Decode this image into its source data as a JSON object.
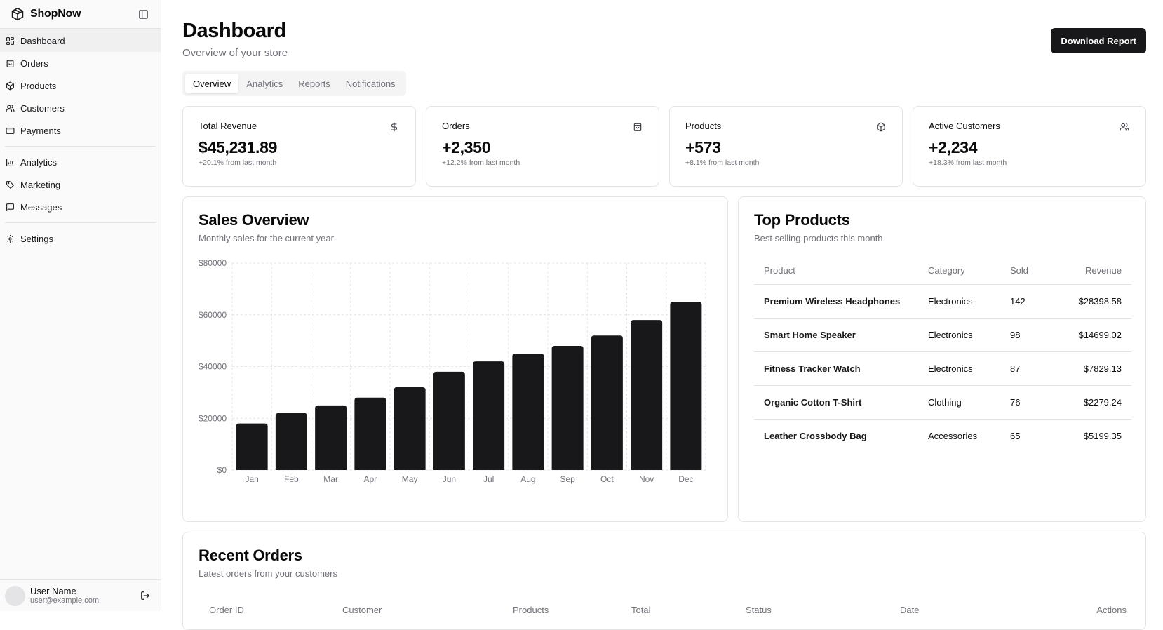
{
  "brand": {
    "name": "ShopNow"
  },
  "sidebar": {
    "primary": [
      {
        "label": "Dashboard",
        "icon": "layout-grid-icon",
        "active": true
      },
      {
        "label": "Orders",
        "icon": "shopping-bag-icon"
      },
      {
        "label": "Products",
        "icon": "package-icon"
      },
      {
        "label": "Customers",
        "icon": "users-icon"
      },
      {
        "label": "Payments",
        "icon": "credit-card-icon"
      }
    ],
    "secondary": [
      {
        "label": "Analytics",
        "icon": "bar-chart-icon"
      },
      {
        "label": "Marketing",
        "icon": "tag-icon"
      },
      {
        "label": "Messages",
        "icon": "message-square-icon"
      }
    ],
    "tertiary": [
      {
        "label": "Settings",
        "icon": "gear-icon"
      }
    ]
  },
  "user": {
    "name": "User Name",
    "email": "user@example.com"
  },
  "header": {
    "title": "Dashboard",
    "subtitle": "Overview of your store",
    "download_label": "Download Report"
  },
  "tabs": [
    {
      "label": "Overview",
      "active": true
    },
    {
      "label": "Analytics"
    },
    {
      "label": "Reports"
    },
    {
      "label": "Notifications"
    }
  ],
  "stats": [
    {
      "title": "Total Revenue",
      "value": "$45,231.89",
      "change": "+20.1% from last month",
      "icon": "dollar-icon"
    },
    {
      "title": "Orders",
      "value": "+2,350",
      "change": "+12.2% from last month",
      "icon": "shopping-bag-icon"
    },
    {
      "title": "Products",
      "value": "+573",
      "change": "+8.1% from last month",
      "icon": "package-icon"
    },
    {
      "title": "Active Customers",
      "value": "+2,234",
      "change": "+18.3% from last month",
      "icon": "users-icon"
    }
  ],
  "sales": {
    "title": "Sales Overview",
    "subtitle": "Monthly sales for the current year"
  },
  "chart_data": {
    "type": "bar",
    "categories": [
      "Jan",
      "Feb",
      "Mar",
      "Apr",
      "May",
      "Jun",
      "Jul",
      "Aug",
      "Sep",
      "Oct",
      "Nov",
      "Dec"
    ],
    "values": [
      18000,
      22000,
      25000,
      28000,
      32000,
      38000,
      42000,
      45000,
      48000,
      52000,
      58000,
      65000
    ],
    "yticks": [
      "$0",
      "$20000",
      "$40000",
      "$60000",
      "$80000"
    ],
    "ylim": [
      0,
      80000
    ],
    "grid": true,
    "bar_color": "#18181b"
  },
  "top_products": {
    "title": "Top Products",
    "subtitle": "Best selling products this month",
    "columns": [
      "Product",
      "Category",
      "Sold",
      "Revenue"
    ],
    "rows": [
      {
        "product": "Premium Wireless Headphones",
        "category": "Electronics",
        "sold": "142",
        "revenue": "$28398.58"
      },
      {
        "product": "Smart Home Speaker",
        "category": "Electronics",
        "sold": "98",
        "revenue": "$14699.02"
      },
      {
        "product": "Fitness Tracker Watch",
        "category": "Electronics",
        "sold": "87",
        "revenue": "$7829.13"
      },
      {
        "product": "Organic Cotton T-Shirt",
        "category": "Clothing",
        "sold": "76",
        "revenue": "$2279.24"
      },
      {
        "product": "Leather Crossbody Bag",
        "category": "Accessories",
        "sold": "65",
        "revenue": "$5199.35"
      }
    ]
  },
  "recent_orders": {
    "title": "Recent Orders",
    "subtitle": "Latest orders from your customers",
    "columns": [
      "Order ID",
      "Customer",
      "Products",
      "Total",
      "Status",
      "Date",
      "Actions"
    ]
  }
}
